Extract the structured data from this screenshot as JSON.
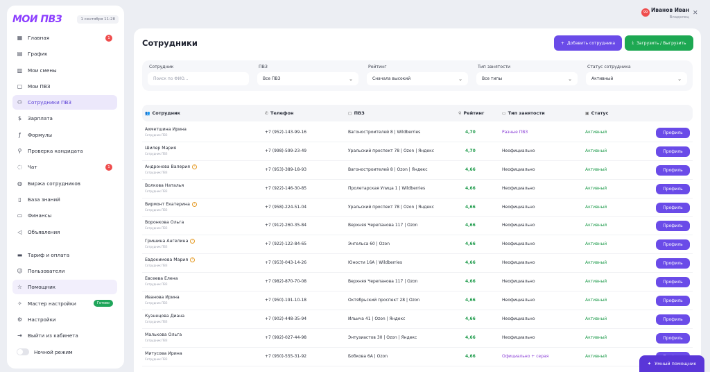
{
  "app": {
    "logo": "МОИ ПВЗ",
    "date": "1 сентября 11:28"
  },
  "sidebar": {
    "items": [
      {
        "label": "Главная",
        "icon": "grid-icon",
        "badge": "1"
      },
      {
        "label": "График",
        "icon": "chart-icon"
      },
      {
        "label": "Мои смены",
        "icon": "calendar-icon"
      },
      {
        "label": "Мои ПВЗ",
        "icon": "box-icon"
      },
      {
        "label": "Сотрудники ПВЗ",
        "icon": "users-icon",
        "active": true
      },
      {
        "label": "Зарплата",
        "icon": "dollar-icon"
      },
      {
        "label": "Формулы",
        "icon": "formula-icon"
      },
      {
        "label": "Проверка кандидата",
        "icon": "search-person-icon"
      },
      {
        "label": "Чат",
        "icon": "chat-icon",
        "badge": "1"
      },
      {
        "label": "Биржа сотрудников",
        "icon": "globe-icon"
      },
      {
        "label": "База знаний",
        "icon": "book-icon"
      },
      {
        "label": "Финансы",
        "icon": "wallet-icon"
      },
      {
        "label": "Объявления",
        "icon": "megaphone-icon"
      }
    ],
    "items2": [
      {
        "label": "Тариф и оплата",
        "icon": "card-icon"
      },
      {
        "label": "Пользователи",
        "icon": "user-icon"
      },
      {
        "label": "Помощник",
        "icon": "star-icon"
      },
      {
        "label": "Мастер настройки",
        "icon": "magic-icon",
        "pill": "Готово"
      },
      {
        "label": "Настройки",
        "icon": "gear-icon"
      },
      {
        "label": "Выйти из кабинета",
        "icon": "logout-icon"
      },
      {
        "label": "Ночной режим",
        "icon": "toggle"
      }
    ]
  },
  "user": {
    "name": "Иванов Иван",
    "role": "Владелец",
    "avatar_badge": "99"
  },
  "page": {
    "title": "Сотрудники",
    "add_button": "Добавить сотрудника",
    "upload_button": "Загрузить / Выгрузить"
  },
  "filters": {
    "employee_label": "Сотрудник",
    "employee_placeholder": "Поиск по ФИО...",
    "pvz_label": "ПВЗ",
    "pvz_value": "Все ПВЗ",
    "rating_label": "Рейтинг",
    "rating_value": "Сначала высокий",
    "type_label": "Тип занятости",
    "type_value": "Все типы",
    "status_label": "Статус сотрудника",
    "status_value": "Активный"
  },
  "table": {
    "headers": {
      "name": "Сотрудник",
      "phone": "Телефон",
      "pvz": "ПВЗ",
      "rating": "Рейтинг",
      "type": "Тип занятости",
      "status": "Статус"
    },
    "profile_label": "Профиль",
    "rows": [
      {
        "name": "Ахметшина Ирина",
        "sub": "Сотрудник ПВЗ",
        "warn": false,
        "phone": "+7 (952)-143-99-16",
        "pvz": "Вагоностроителей 8 | Wildberries",
        "rating": "4,70",
        "type": "Разные ПВЗ",
        "type_purple": true,
        "status": "Активный"
      },
      {
        "name": "Шилер Мария",
        "sub": "Сотрудник ПВЗ",
        "warn": false,
        "phone": "+7 (998)-599-23-49",
        "pvz": "Уральский проспект 78 | Ozon | Яндекс",
        "rating": "4,70",
        "type": "Неофициально",
        "type_purple": false,
        "status": "Активный"
      },
      {
        "name": "Андронова Валерия",
        "sub": "Сотрудник ПВЗ",
        "warn": true,
        "phone": "+7 (953)-389-18-93",
        "pvz": "Вагоностроителей 8 | Ozon | Яндекс",
        "rating": "4,66",
        "type": "Неофициально",
        "type_purple": false,
        "status": "Активный"
      },
      {
        "name": "Волкова Наталья",
        "sub": "Сотрудник ПВЗ",
        "warn": false,
        "phone": "+7 (922)-146-30-85",
        "pvz": "Пролетарская Улица 1 | Wildberries",
        "rating": "4,66",
        "type": "Неофициально",
        "type_purple": false,
        "status": "Активный"
      },
      {
        "name": "Вирмонт Екатерина",
        "sub": "Сотрудник ПВЗ",
        "warn": true,
        "phone": "+7 (958)-224-51-04",
        "pvz": "Уральский проспект 78 | Ozon | Яндекс",
        "rating": "4,66",
        "type": "Неофициально",
        "type_purple": false,
        "status": "Активный"
      },
      {
        "name": "Воронкова Ольга",
        "sub": "Сотрудник ПВЗ",
        "warn": false,
        "phone": "+7 (912)-260-35-84",
        "pvz": "Верхняя Черепанова 117 | Ozon",
        "rating": "4,66",
        "type": "Неофициально",
        "type_purple": false,
        "status": "Активный"
      },
      {
        "name": "Гришина Ангелина",
        "sub": "Сотрудник ПВЗ",
        "warn": true,
        "phone": "+7 (922)-122-84-65",
        "pvz": "Энгельса 60 | Ozon",
        "rating": "4,66",
        "type": "Неофициально",
        "type_purple": false,
        "status": "Активный"
      },
      {
        "name": "Евдокимова Мария",
        "sub": "Сотрудник ПВЗ",
        "warn": true,
        "phone": "+7 (953)-043-14-26",
        "pvz": "Юности 16А | Wildberries",
        "rating": "4,66",
        "type": "Неофициально",
        "type_purple": false,
        "status": "Активный"
      },
      {
        "name": "Евсеева Елена",
        "sub": "Сотрудник ПВЗ",
        "warn": false,
        "phone": "+7 (982)-870-70-08",
        "pvz": "Верхняя Черепанова 117 | Ozon",
        "rating": "4,66",
        "type": "Неофициально",
        "type_purple": false,
        "status": "Активный"
      },
      {
        "name": "Иванова Ирина",
        "sub": "Сотрудник ПВЗ",
        "warn": false,
        "phone": "+7 (950)-191-10-18",
        "pvz": "Октябрьский проспект 28 | Ozon",
        "rating": "4,66",
        "type": "Неофициально",
        "type_purple": false,
        "status": "Активный"
      },
      {
        "name": "Кузнецова Диана",
        "sub": "Сотрудник ПВЗ",
        "warn": false,
        "phone": "+7 (902)-448-35-94",
        "pvz": "Ильича 41 | Ozon | Яндекс",
        "rating": "4,66",
        "type": "Неофициально",
        "type_purple": false,
        "status": "Активный"
      },
      {
        "name": "Малькова Ольга",
        "sub": "Сотрудник ПВЗ",
        "warn": false,
        "phone": "+7 (992)-027-44-98",
        "pvz": "Энтузиастов 30 | Ozon | Яндекс",
        "rating": "4,66",
        "type": "Неофициально",
        "type_purple": false,
        "status": "Активный"
      },
      {
        "name": "Митусова Ирина",
        "sub": "Сотрудник ПВЗ",
        "warn": false,
        "phone": "+7 (950)-555-31-92",
        "pvz": "Бобкова 6А | Ozon",
        "rating": "4,66",
        "type": "Официально + серая",
        "type_purple": true,
        "status": "Активный"
      }
    ]
  },
  "assistant": {
    "label": "Умный помощник"
  },
  "colors": {
    "accent": "#6a4be8",
    "green": "#1da852",
    "status_green": "#1e9b4b",
    "badge_red": "#ef4d4d"
  }
}
